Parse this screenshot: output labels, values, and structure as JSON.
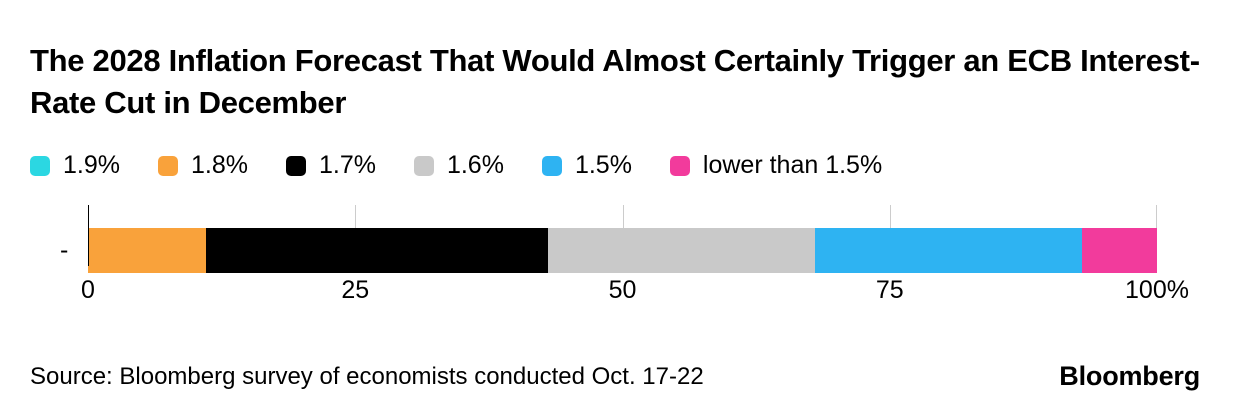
{
  "title": "The 2028 Inflation Forecast That Would Almost Certainly Trigger an ECB Interest-Rate Cut in December",
  "legend": [
    {
      "label": "1.9%",
      "color": "#2bd7e2"
    },
    {
      "label": "1.8%",
      "color": "#f9a23b"
    },
    {
      "label": "1.7%",
      "color": "#000000"
    },
    {
      "label": "1.6%",
      "color": "#c9c9c9"
    },
    {
      "label": "1.5%",
      "color": "#2eb3f2"
    },
    {
      "label": "lower than 1.5%",
      "color": "#f23b9c"
    }
  ],
  "chart_data": {
    "type": "bar",
    "orientation": "horizontal-stacked",
    "title": "The 2028 Inflation Forecast That Would Almost Certainly Trigger an ECB Interest-Rate Cut in December",
    "categories": [
      "-"
    ],
    "series": [
      {
        "name": "1.9%",
        "color": "#2bd7e2",
        "values": [
          0
        ]
      },
      {
        "name": "1.8%",
        "color": "#f9a23b",
        "values": [
          11
        ]
      },
      {
        "name": "1.7%",
        "color": "#000000",
        "values": [
          32
        ]
      },
      {
        "name": "1.6%",
        "color": "#c9c9c9",
        "values": [
          25
        ]
      },
      {
        "name": "1.5%",
        "color": "#2eb3f2",
        "values": [
          25
        ]
      },
      {
        "name": "lower than 1.5%",
        "color": "#f23b9c",
        "values": [
          7
        ]
      }
    ],
    "xlabel": "",
    "ylabel": "",
    "xlim": [
      0,
      100
    ],
    "x_ticks": [
      {
        "value": 0,
        "label": "0"
      },
      {
        "value": 25,
        "label": "25"
      },
      {
        "value": 50,
        "label": "50"
      },
      {
        "value": 75,
        "label": "75"
      },
      {
        "value": 100,
        "label": "100%"
      }
    ],
    "grid": "vertical-ticks-above-bar",
    "legend_position": "top",
    "tick_color": "#cccccc",
    "axis_color": "#000000"
  },
  "source": "Source: Bloomberg survey of economists conducted Oct. 17-22",
  "brand": "Bloomberg"
}
